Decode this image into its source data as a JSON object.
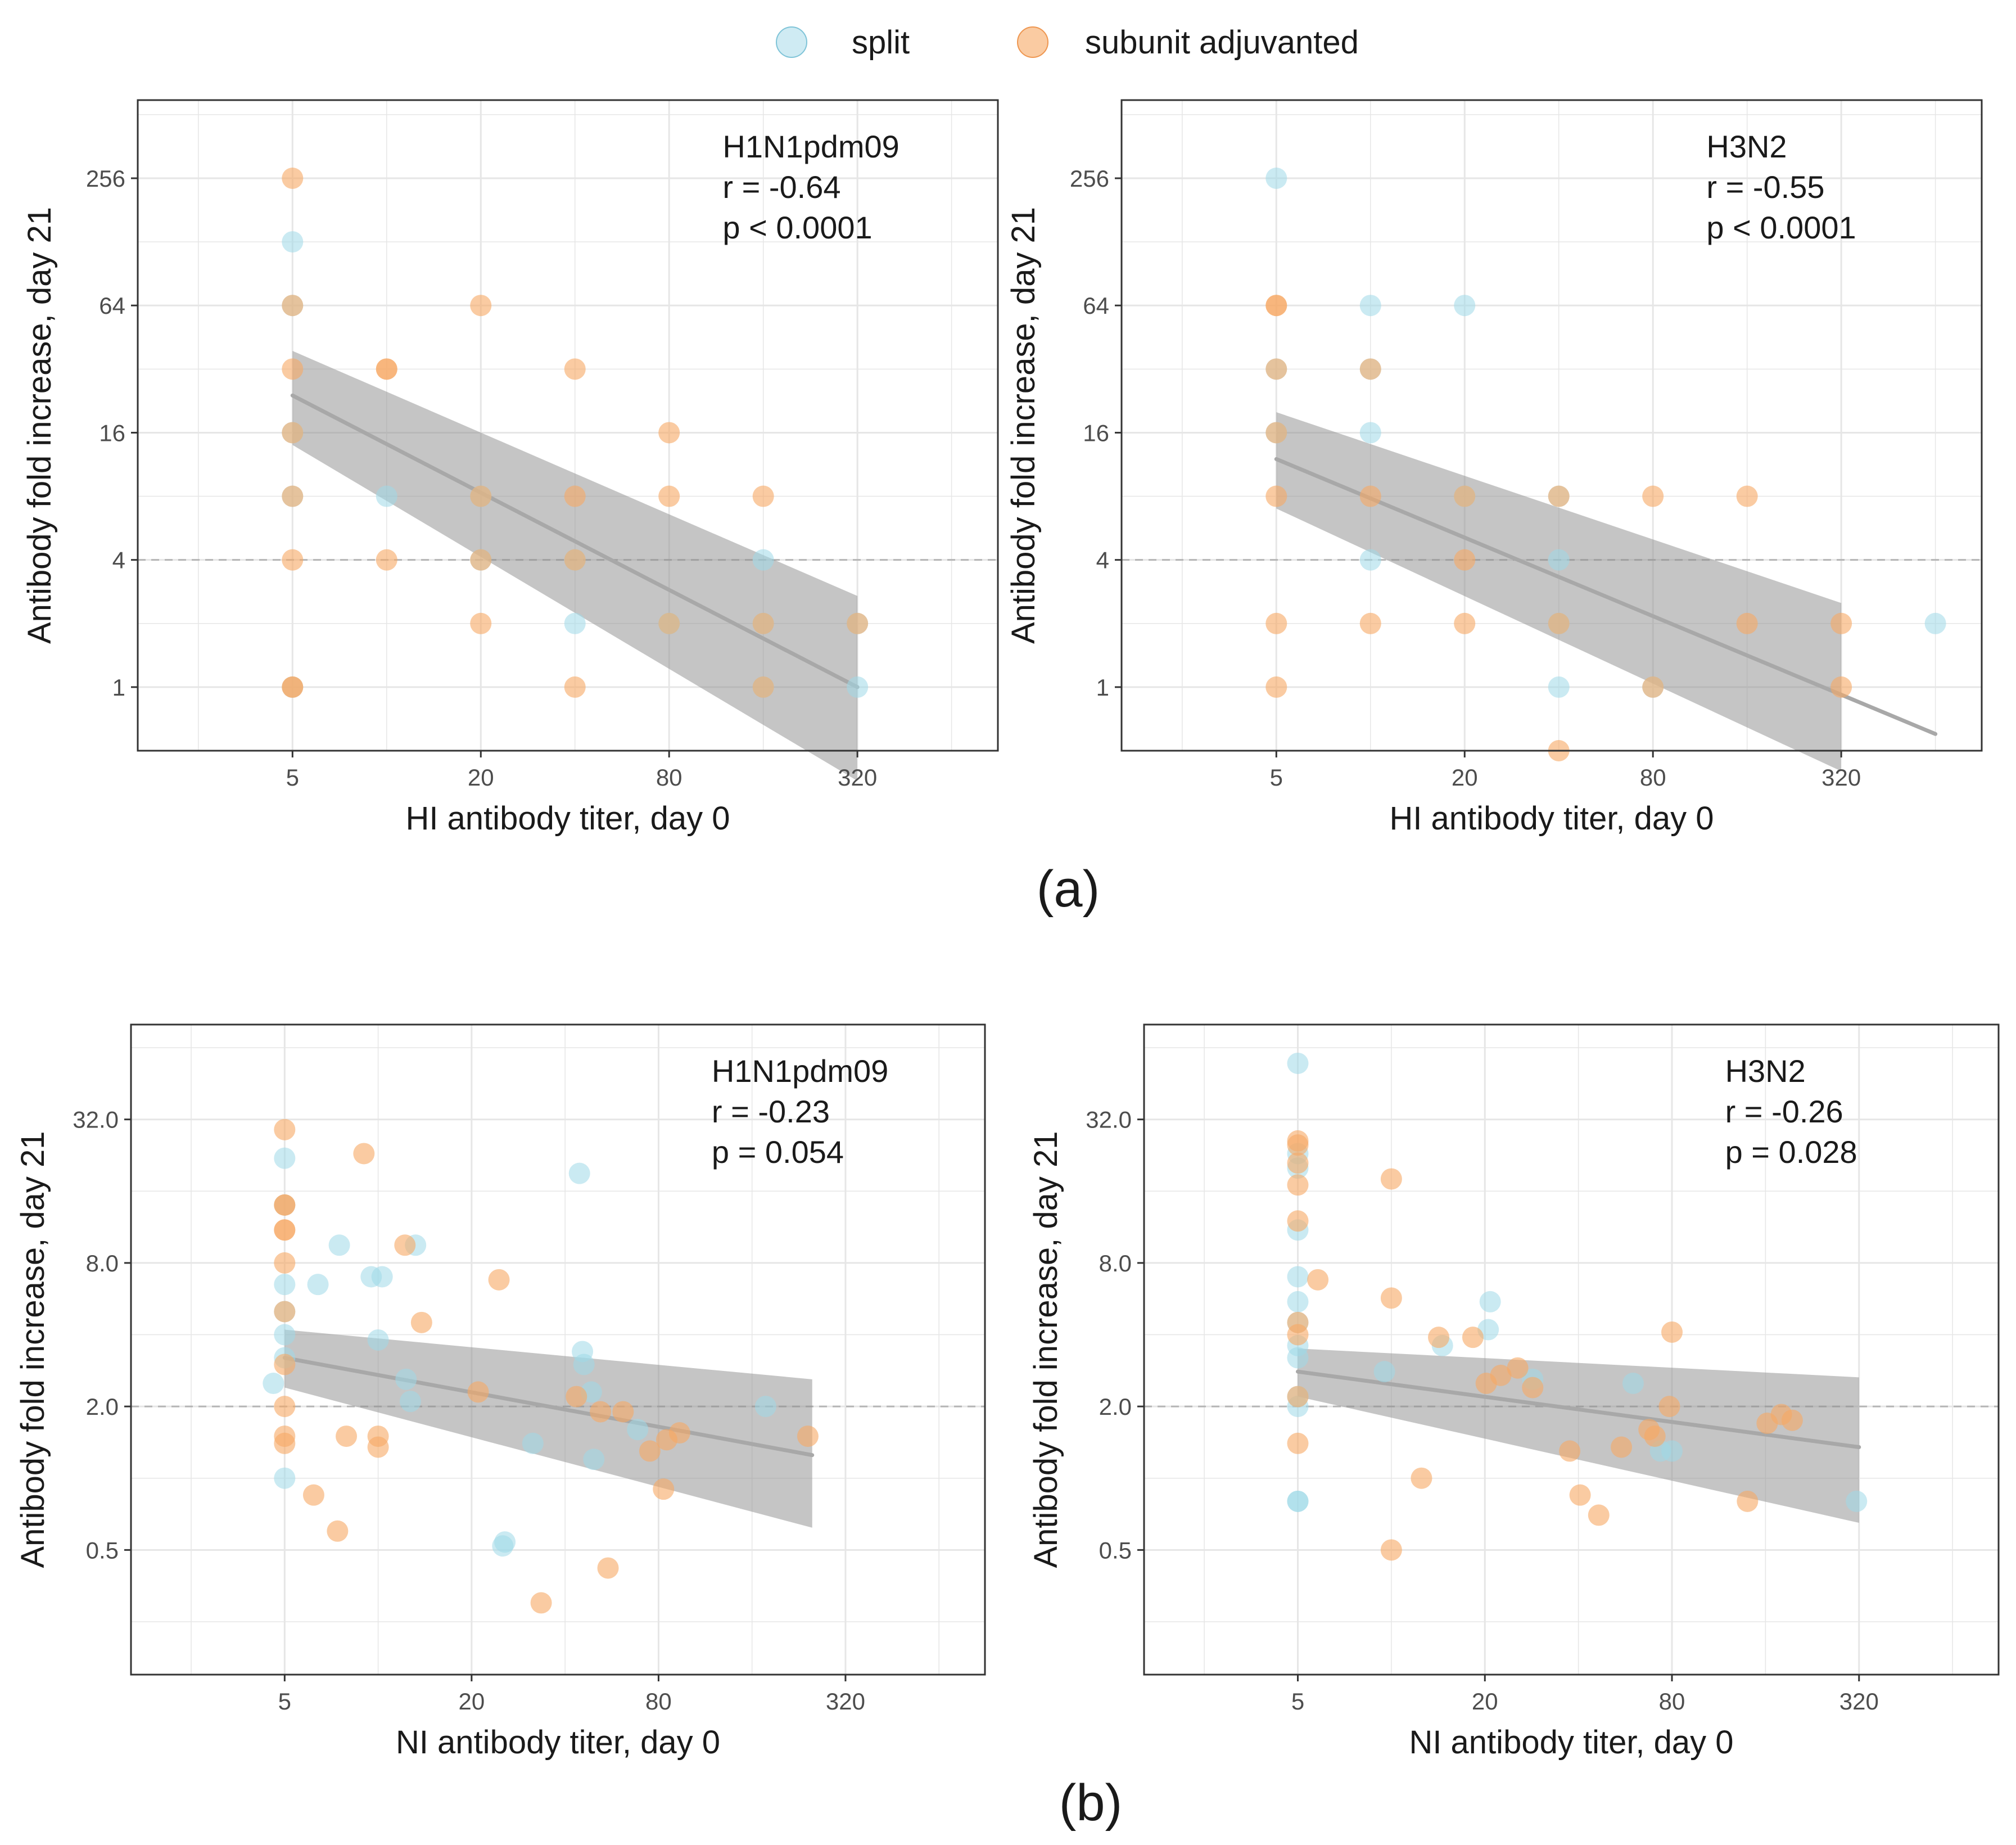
{
  "legend": {
    "items": [
      {
        "label": "split",
        "color": "#9fd8e8"
      },
      {
        "label": "subunit adjuvanted",
        "color": "#f7a864"
      }
    ]
  },
  "panel_labels": [
    "(a)",
    "(b)"
  ],
  "colors": {
    "split": "#9fd8e8",
    "subunit": "#f7a864",
    "band": "#8c8c8c",
    "fit_line": "#a8a8a8",
    "grid": "#e6e6e6",
    "reference_line": "#b5b5b5"
  },
  "chart_data": [
    {
      "type": "scatter",
      "title": "H1N1pdm09",
      "annotation": [
        "H1N1pdm09",
        "r = -0.64",
        "p < 0.0001"
      ],
      "xlabel": "HI antibody titer, day 0",
      "ylabel": "Antibody fold increase, day 21",
      "x_scale": "log2",
      "y_scale": "log2",
      "xticks": [
        5,
        20,
        80,
        320
      ],
      "xtick_labels": [
        "5",
        "20",
        "80",
        "320"
      ],
      "yticks": [
        1,
        4,
        16,
        64,
        256
      ],
      "ytick_labels": [
        "1",
        "4",
        "16",
        "64",
        "256"
      ],
      "xlim": [
        1.6,
        900
      ],
      "ylim": [
        0.5,
        600
      ],
      "reference_y": 4,
      "fit": {
        "x": [
          5,
          320
        ],
        "y": [
          24,
          1.0
        ],
        "band_low": [
          14,
          0.36
        ],
        "band_high": [
          39,
          2.7
        ]
      },
      "series": [
        {
          "name": "split",
          "x": [
            5,
            5,
            5,
            5,
            5,
            10,
            20,
            20,
            40,
            40,
            80,
            80,
            160,
            160,
            160,
            320,
            320
          ],
          "y": [
            128,
            64,
            16,
            8,
            1,
            8,
            8,
            4,
            2,
            4,
            2,
            2,
            4,
            2,
            1,
            1,
            2
          ]
        },
        {
          "name": "subunit adjuvanted",
          "x": [
            5,
            5,
            5,
            5,
            5,
            5,
            5,
            5,
            10,
            10,
            10,
            20,
            20,
            20,
            20,
            40,
            40,
            40,
            40,
            80,
            80,
            80,
            160,
            160,
            160,
            320
          ],
          "y": [
            256,
            64,
            32,
            16,
            8,
            4,
            1,
            1,
            32,
            32,
            4,
            64,
            8,
            4,
            2,
            32,
            8,
            4,
            1,
            16,
            8,
            2,
            8,
            2,
            1,
            2
          ]
        }
      ]
    },
    {
      "type": "scatter",
      "title": "H3N2",
      "annotation": [
        "H3N2",
        "r = -0.55",
        "p < 0.0001"
      ],
      "xlabel": "HI antibody titer, day 0",
      "ylabel": "Antibody fold increase, day 21",
      "x_scale": "log2",
      "y_scale": "log2",
      "xticks": [
        5,
        20,
        80,
        320
      ],
      "xtick_labels": [
        "5",
        "20",
        "80",
        "320"
      ],
      "yticks": [
        1,
        4,
        16,
        64,
        256
      ],
      "ytick_labels": [
        "1",
        "4",
        "16",
        "64",
        "256"
      ],
      "xlim": [
        1.6,
        900
      ],
      "ylim": [
        0.5,
        600
      ],
      "reference_y": 4,
      "fit": {
        "x": [
          5,
          320
        ],
        "y": [
          12,
          1.0
        ],
        "band_low": [
          7,
          0.4
        ],
        "band_high": [
          20,
          2.5
        ],
        "extend_x": 640,
        "extend_y": 0.6
      },
      "series": [
        {
          "name": "split",
          "x": [
            5,
            5,
            5,
            10,
            10,
            10,
            10,
            20,
            20,
            40,
            40,
            40,
            40,
            80,
            640
          ],
          "y": [
            256,
            32,
            16,
            64,
            32,
            16,
            4,
            64,
            8,
            8,
            4,
            2,
            1,
            1,
            2
          ]
        },
        {
          "name": "subunit adjuvanted",
          "x": [
            5,
            5,
            5,
            5,
            5,
            5,
            5,
            10,
            10,
            10,
            20,
            20,
            20,
            40,
            40,
            40,
            80,
            80,
            160,
            160,
            320,
            320
          ],
          "y": [
            64,
            64,
            32,
            16,
            8,
            2,
            1,
            32,
            8,
            2,
            4,
            8,
            2,
            8,
            2,
            0.5,
            8,
            1,
            8,
            2,
            2,
            1
          ]
        }
      ]
    },
    {
      "type": "scatter",
      "title": "H1N1pdm09",
      "annotation": [
        "H1N1pdm09",
        "r = -0.23",
        "p = 0.054"
      ],
      "xlabel": "NI  antibody titer, day 0",
      "ylabel": "Antibody fold increase, day 21",
      "x_scale": "log2",
      "y_scale": "log2",
      "xticks": [
        5,
        20,
        80,
        320
      ],
      "xtick_labels": [
        "5",
        "20",
        "80",
        "320"
      ],
      "yticks": [
        0.5,
        2,
        8,
        32
      ],
      "ytick_labels": [
        "0.5",
        "2.0",
        "8.0",
        "32.0"
      ],
      "xlim": [
        1.6,
        900
      ],
      "ylim": [
        0.15,
        80
      ],
      "reference_y": 2,
      "fit": {
        "x": [
          5,
          250
        ],
        "y": [
          3.2,
          1.25
        ],
        "band_low": [
          2.4,
          0.62
        ],
        "band_high": [
          4.2,
          2.6
        ]
      },
      "series": [
        {
          "name": "split",
          "x": [
            4.6,
            5,
            5,
            5,
            5,
            5,
            5,
            5,
            7.5,
            6.4,
            9.5,
            10.3,
            10,
            12.3,
            12.7,
            13.2,
            25.2,
            25.6,
            31.5,
            44.5,
            45.5,
            46,
            48.6,
            49.5,
            68.5,
            177
          ],
          "y": [
            2.5,
            22,
            14,
            6.5,
            5,
            4,
            3.2,
            1,
            9.5,
            6.5,
            7,
            7,
            3.8,
            2.6,
            2.1,
            9.5,
            0.52,
            0.54,
            1.4,
            19,
            3.4,
            3,
            2.3,
            1.2,
            1.6,
            2
          ]
        },
        {
          "name": "subunit adjuvanted",
          "x": [
            5,
            5,
            5,
            5,
            5,
            5,
            5,
            5,
            5,
            5,
            5,
            6.2,
            7.4,
            7.9,
            9,
            10,
            10,
            12.2,
            13.8,
            21,
            24.5,
            33.5,
            43.5,
            52,
            55,
            61.5,
            75,
            83,
            85,
            93.5,
            242
          ],
          "y": [
            29,
            14,
            14,
            11,
            11,
            8,
            5,
            3,
            2,
            1.5,
            1.4,
            0.85,
            0.6,
            1.5,
            23,
            1.5,
            1.35,
            9.5,
            4.5,
            2.3,
            6.8,
            0.3,
            2.2,
            1.9,
            0.42,
            1.9,
            1.3,
            0.9,
            1.45,
            1.55,
            1.5
          ]
        }
      ]
    },
    {
      "type": "scatter",
      "title": "H3N2",
      "annotation": [
        "H3N2",
        "r = -0.26",
        "p = 0.028"
      ],
      "xlabel": "NI  antibody titer, day 0",
      "ylabel": "Antibody fold increase, day 21",
      "x_scale": "log2",
      "y_scale": "log2",
      "xticks": [
        5,
        20,
        80,
        320
      ],
      "xtick_labels": [
        "5",
        "20",
        "80",
        "320"
      ],
      "yticks": [
        0.5,
        2,
        8,
        32
      ],
      "ytick_labels": [
        "0.5",
        "2.0",
        "8.0",
        "32.0"
      ],
      "xlim": [
        1.6,
        900
      ],
      "ylim": [
        0.15,
        80
      ],
      "reference_y": 2,
      "fit": {
        "x": [
          5,
          320
        ],
        "y": [
          2.8,
          1.35
        ],
        "band_low": [
          2.2,
          0.65
        ],
        "band_high": [
          3.5,
          2.65
        ]
      },
      "series": [
        {
          "name": "split",
          "x": [
            5,
            5,
            5,
            5,
            5,
            5,
            5,
            5,
            5,
            5,
            5,
            5,
            5,
            9.5,
            14.6,
            20.5,
            20.8,
            28.5,
            60,
            73.5,
            80,
            314
          ],
          "y": [
            55,
            23,
            20,
            11,
            7,
            5.5,
            4.5,
            3.6,
            3.2,
            2,
            0.8,
            0.8,
            2.2,
            2.8,
            3.6,
            4.2,
            5.5,
            2.6,
            2.5,
            1.3,
            1.3,
            0.8
          ]
        },
        {
          "name": "subunit adjuvanted",
          "x": [
            5,
            5,
            5,
            5,
            5,
            5,
            5,
            5,
            5,
            5.8,
            10,
            10,
            10,
            12.5,
            14.2,
            18.3,
            20.2,
            22.5,
            25.5,
            28.5,
            37.5,
            40.5,
            46.5,
            55,
            67.5,
            70.5,
            78.5,
            80,
            140,
            162,
            180,
            195
          ],
          "y": [
            26,
            25,
            21,
            17,
            12,
            4.5,
            4,
            2.2,
            1.4,
            6.8,
            18,
            5.7,
            0.5,
            1,
            3.9,
            3.9,
            2.5,
            2.7,
            2.9,
            2.4,
            1.3,
            0.85,
            0.7,
            1.35,
            1.6,
            1.5,
            2,
            4.1,
            0.8,
            1.7,
            1.85,
            1.75
          ]
        }
      ]
    }
  ]
}
